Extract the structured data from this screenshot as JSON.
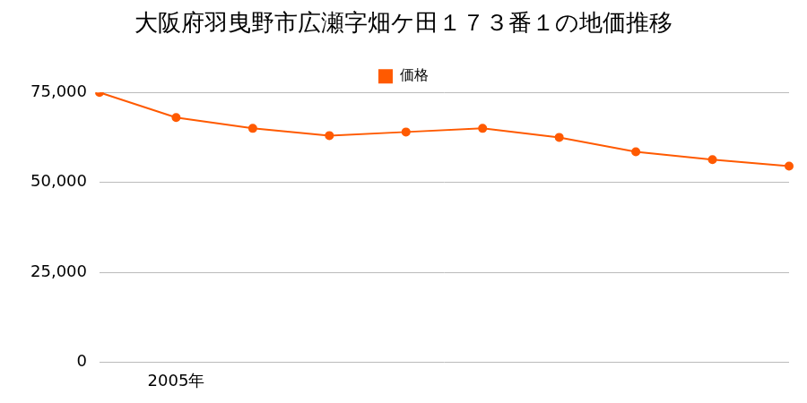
{
  "chart_data": {
    "type": "line",
    "title": "大阪府羽曳野市広瀬字畑ケ田１７３番１の地価推移",
    "categories": [
      null,
      "2005年",
      null,
      null,
      null,
      null,
      null,
      null,
      null,
      null
    ],
    "series": [
      {
        "name": "価格",
        "color": "#ff5a00",
        "values": [
          75000,
          68000,
          65000,
          63000,
          64000,
          65000,
          62500,
          58500,
          56300,
          54500
        ],
        "marker": "circle"
      }
    ],
    "ylim": [
      0,
      75000
    ],
    "yticks": [
      0,
      {
        "value": 25000,
        "label": "25,000"
      },
      {
        "value": 50000,
        "label": "50,000"
      },
      {
        "value": 75000,
        "label": "75,000"
      }
    ],
    "grid": true,
    "legend": "top"
  }
}
